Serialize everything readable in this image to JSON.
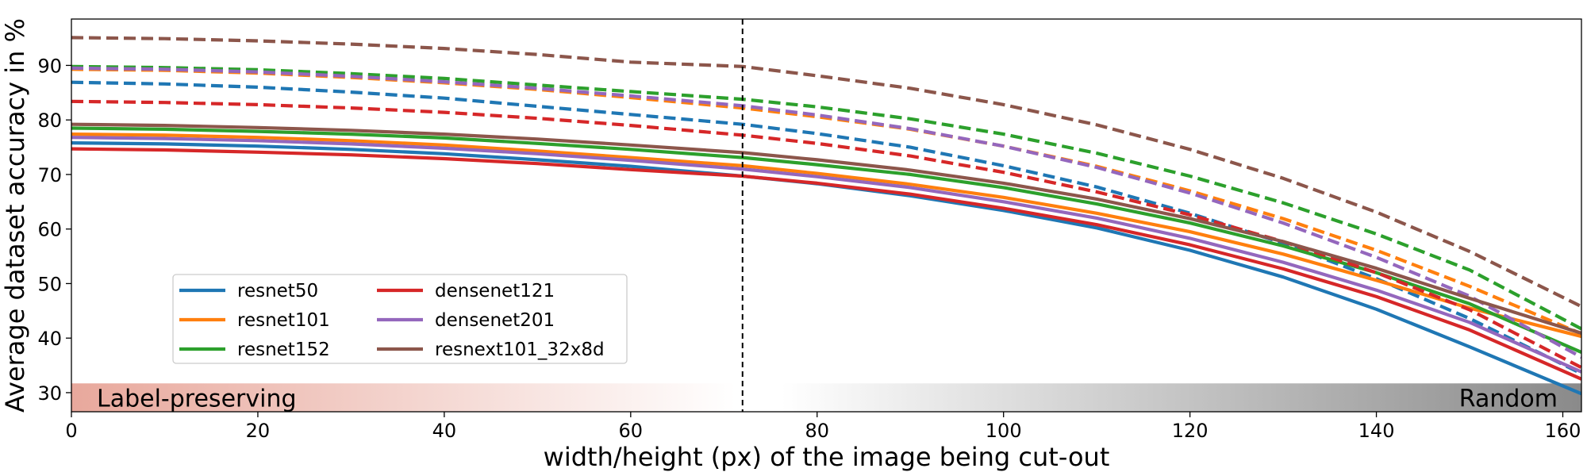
{
  "chart_data": {
    "type": "line",
    "title": "",
    "xlabel": "width/height (px) of the image being cut-out",
    "ylabel": "Average dataset accuracy in %",
    "xlim": [
      0,
      162
    ],
    "ylim": [
      26.5,
      98.5
    ],
    "xticks": [
      0,
      20,
      40,
      60,
      80,
      100,
      120,
      140,
      160
    ],
    "yticks": [
      30,
      40,
      50,
      60,
      70,
      80,
      90
    ],
    "grid": false,
    "legend_position": "lower-left",
    "legend_columns": 2,
    "vline_x": 72,
    "band": {
      "left_label": "Label-preserving",
      "right_label": "Random",
      "y_range": [
        26.5,
        31.7
      ],
      "left_color": "#e8a89c",
      "mid_color": "#ffffff",
      "right_color": "#8a8a8a"
    },
    "x": [
      0,
      10,
      20,
      30,
      40,
      50,
      60,
      72,
      80,
      90,
      100,
      110,
      120,
      130,
      140,
      150,
      162
    ],
    "series": [
      {
        "name": "resnet50",
        "color": "#1f77b4",
        "style": "solid",
        "values": [
          75.8,
          75.6,
          75.2,
          74.6,
          73.8,
          72.7,
          71.5,
          69.7,
          68.3,
          66.1,
          63.4,
          60.2,
          56.1,
          51.2,
          45.3,
          38.4,
          29.8
        ]
      },
      {
        "name": "resnet50",
        "color": "#1f77b4",
        "style": "dashed",
        "values": [
          86.9,
          86.6,
          86.0,
          85.1,
          84.0,
          82.5,
          81.0,
          79.2,
          77.5,
          75.0,
          71.6,
          67.7,
          62.9,
          57.4,
          50.9,
          43.6,
          33.5
        ]
      },
      {
        "name": "resnet101",
        "color": "#ff7f0e",
        "style": "solid",
        "values": [
          77.4,
          77.2,
          76.8,
          76.2,
          75.4,
          74.3,
          73.1,
          71.6,
          70.2,
          68.2,
          65.8,
          62.9,
          59.5,
          55.4,
          50.6,
          45.5,
          40.3
        ]
      },
      {
        "name": "resnet101",
        "color": "#ff7f0e",
        "style": "dashed",
        "values": [
          89.3,
          89.1,
          88.6,
          87.8,
          86.8,
          85.6,
          84.1,
          82.2,
          80.6,
          78.3,
          75.2,
          71.5,
          67.0,
          61.9,
          56.1,
          49.5,
          40.8
        ]
      },
      {
        "name": "resnet152",
        "color": "#2ca02c",
        "style": "solid",
        "values": [
          78.5,
          78.3,
          77.9,
          77.4,
          76.7,
          75.7,
          74.6,
          73.1,
          71.8,
          70.0,
          67.6,
          64.6,
          61.1,
          56.9,
          52.0,
          46.3,
          37.4
        ]
      },
      {
        "name": "resnet152",
        "color": "#2ca02c",
        "style": "dashed",
        "values": [
          89.8,
          89.6,
          89.2,
          88.5,
          87.6,
          86.4,
          85.2,
          83.8,
          82.4,
          80.2,
          77.4,
          73.9,
          69.7,
          64.8,
          59.1,
          52.5,
          41.7
        ]
      },
      {
        "name": "densenet121",
        "color": "#d62728",
        "style": "solid",
        "values": [
          74.7,
          74.5,
          74.1,
          73.6,
          72.9,
          72.0,
          70.9,
          69.7,
          68.4,
          66.4,
          63.8,
          60.8,
          57.1,
          52.7,
          47.6,
          41.5,
          32.5
        ]
      },
      {
        "name": "densenet121",
        "color": "#d62728",
        "style": "dashed",
        "values": [
          83.4,
          83.2,
          82.8,
          82.2,
          81.4,
          80.3,
          79.0,
          77.2,
          75.7,
          73.4,
          70.4,
          66.8,
          62.6,
          57.7,
          52.0,
          45.2,
          34.6
        ]
      },
      {
        "name": "densenet201",
        "color": "#9467bd",
        "style": "solid",
        "values": [
          76.8,
          76.6,
          76.2,
          75.6,
          74.8,
          73.8,
          72.6,
          71.0,
          69.6,
          67.6,
          65.0,
          62.0,
          58.3,
          53.9,
          48.8,
          42.9,
          33.8
        ]
      },
      {
        "name": "densenet201",
        "color": "#9467bd",
        "style": "dashed",
        "values": [
          89.5,
          89.3,
          88.8,
          88.0,
          87.0,
          85.8,
          84.4,
          82.6,
          80.9,
          78.4,
          75.2,
          71.3,
          66.6,
          61.1,
          54.8,
          47.7,
          36.5
        ]
      },
      {
        "name": "resnext101_32x8d",
        "color": "#8c564b",
        "style": "solid",
        "values": [
          79.2,
          79.0,
          78.6,
          78.1,
          77.4,
          76.5,
          75.4,
          74.0,
          72.7,
          70.8,
          68.4,
          65.5,
          61.9,
          57.7,
          52.8,
          47.3,
          40.9
        ]
      },
      {
        "name": "resnext101_32x8d",
        "color": "#8c564b",
        "style": "dashed",
        "values": [
          95.1,
          94.9,
          94.5,
          93.9,
          93.1,
          92.0,
          90.6,
          89.8,
          88.1,
          85.8,
          82.8,
          79.1,
          74.6,
          69.3,
          63.1,
          55.9,
          45.8
        ]
      }
    ]
  }
}
